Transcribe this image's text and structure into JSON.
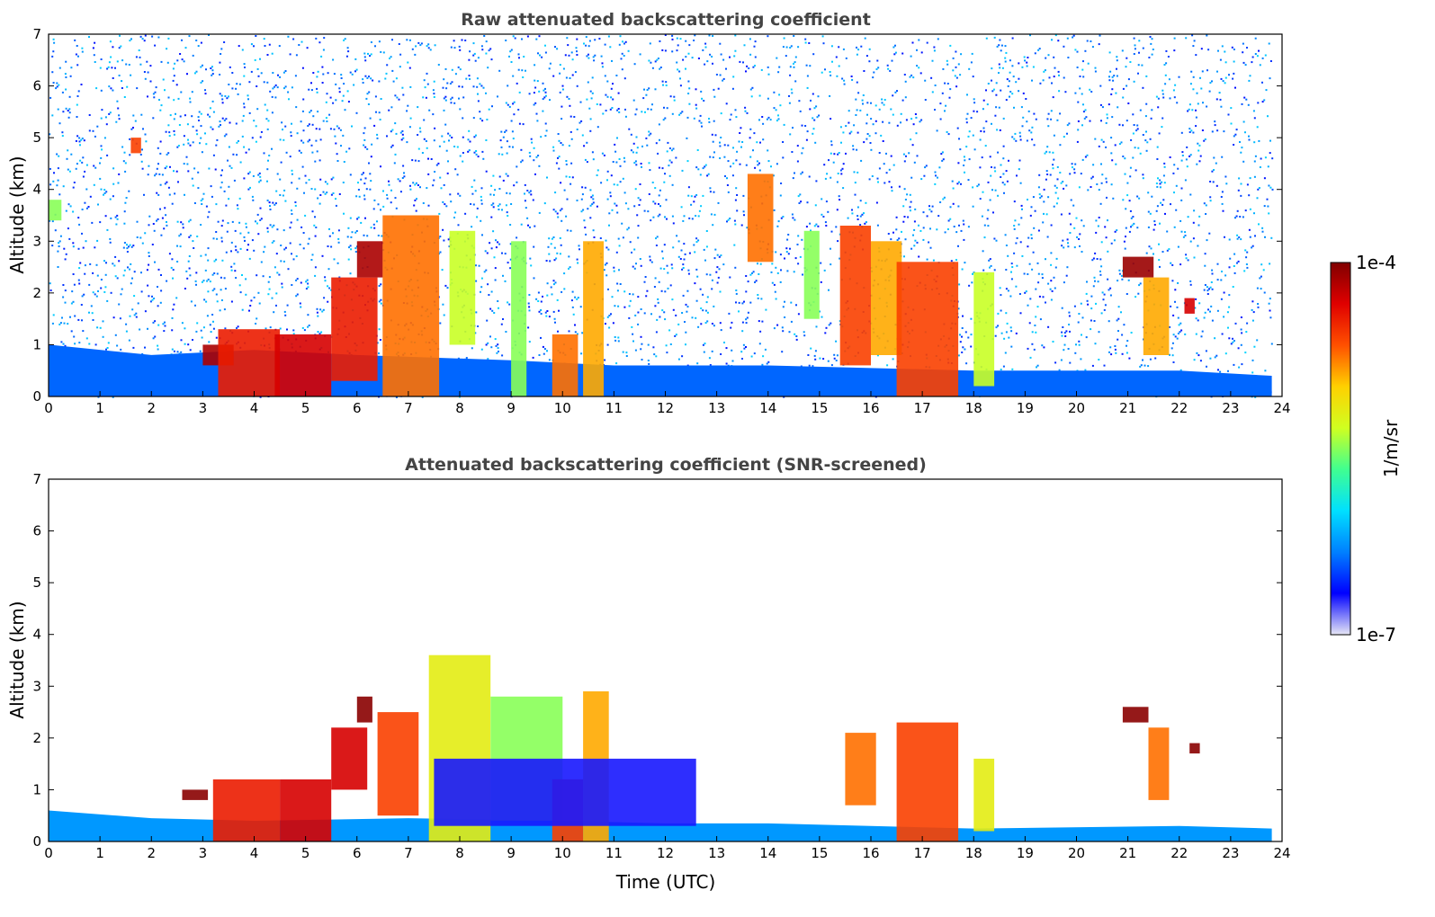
{
  "chart_data": [
    {
      "type": "heatmap",
      "title": "Raw attenuated backscattering coefficient",
      "xlabel": "",
      "ylabel": "Altitude (km)",
      "xlim": [
        0,
        24
      ],
      "ylim": [
        0,
        7
      ],
      "x_ticks": [
        "0",
        "1",
        "2",
        "3",
        "4",
        "5",
        "6",
        "7",
        "8",
        "9",
        "10",
        "11",
        "12",
        "13",
        "14",
        "15",
        "16",
        "17",
        "18",
        "19",
        "20",
        "21",
        "22",
        "23",
        "24"
      ],
      "y_ticks": [
        "0",
        "1",
        "2",
        "3",
        "4",
        "5",
        "6",
        "7"
      ],
      "boundary_layer": [
        {
          "x": 0,
          "y": 1.0
        },
        {
          "x": 2,
          "y": 0.8
        },
        {
          "x": 4,
          "y": 0.9
        },
        {
          "x": 6,
          "y": 0.8
        },
        {
          "x": 9,
          "y": 0.7
        },
        {
          "x": 11,
          "y": 0.6
        },
        {
          "x": 14,
          "y": 0.6
        },
        {
          "x": 18,
          "y": 0.5
        },
        {
          "x": 22,
          "y": 0.5
        },
        {
          "x": 23.8,
          "y": 0.4
        }
      ],
      "cloud_features": [
        {
          "x0": 3.0,
          "x1": 3.6,
          "y0": 0.6,
          "y1": 1.0,
          "level": 0.95
        },
        {
          "x0": 3.3,
          "x1": 4.5,
          "y0": 0.0,
          "y1": 1.3,
          "level": 0.85
        },
        {
          "x0": 4.4,
          "x1": 5.5,
          "y0": 0.0,
          "y1": 1.2,
          "level": 0.9
        },
        {
          "x0": 5.5,
          "x1": 6.4,
          "y0": 0.3,
          "y1": 2.3,
          "level": 0.85
        },
        {
          "x0": 6.0,
          "x1": 6.5,
          "y0": 2.3,
          "y1": 3.0,
          "level": 0.95
        },
        {
          "x0": 6.5,
          "x1": 7.6,
          "y0": 0.0,
          "y1": 3.5,
          "level": 0.75
        },
        {
          "x0": 7.8,
          "x1": 8.3,
          "y0": 1.0,
          "y1": 3.2,
          "level": 0.55
        },
        {
          "x0": 9.0,
          "x1": 9.3,
          "y0": 0.0,
          "y1": 3.0,
          "level": 0.5
        },
        {
          "x0": 9.8,
          "x1": 10.3,
          "y0": 0.0,
          "y1": 1.2,
          "level": 0.75
        },
        {
          "x0": 10.4,
          "x1": 10.8,
          "y0": 0.0,
          "y1": 3.0,
          "level": 0.7
        },
        {
          "x0": 13.6,
          "x1": 14.1,
          "y0": 2.6,
          "y1": 4.3,
          "level": 0.75
        },
        {
          "x0": 14.7,
          "x1": 15.0,
          "y0": 1.5,
          "y1": 3.2,
          "level": 0.5
        },
        {
          "x0": 15.4,
          "x1": 16.0,
          "y0": 0.6,
          "y1": 3.3,
          "level": 0.8
        },
        {
          "x0": 16.0,
          "x1": 16.6,
          "y0": 0.8,
          "y1": 3.0,
          "level": 0.7
        },
        {
          "x0": 16.5,
          "x1": 17.7,
          "y0": 0.0,
          "y1": 2.6,
          "level": 0.8
        },
        {
          "x0": 18.0,
          "x1": 18.4,
          "y0": 0.2,
          "y1": 2.4,
          "level": 0.55
        },
        {
          "x0": 20.9,
          "x1": 21.5,
          "y0": 2.3,
          "y1": 2.7,
          "level": 0.97
        },
        {
          "x0": 21.3,
          "x1": 21.8,
          "y0": 0.8,
          "y1": 2.3,
          "level": 0.7
        },
        {
          "x0": 22.1,
          "x1": 22.3,
          "y0": 1.6,
          "y1": 1.9,
          "level": 0.9
        },
        {
          "x0": 1.6,
          "x1": 1.8,
          "y0": 4.7,
          "y1": 5.0,
          "level": 0.8
        },
        {
          "x0": 0.0,
          "x1": 0.25,
          "y0": 3.4,
          "y1": 3.8,
          "level": 0.5
        }
      ]
    },
    {
      "type": "heatmap",
      "title": "Attenuated backscattering coefficient (SNR-screened)",
      "xlabel": "Time (UTC)",
      "ylabel": "Altitude (km)",
      "xlim": [
        0,
        24
      ],
      "ylim": [
        0,
        7
      ],
      "x_ticks": [
        "0",
        "1",
        "2",
        "3",
        "4",
        "5",
        "6",
        "7",
        "8",
        "9",
        "10",
        "11",
        "12",
        "13",
        "14",
        "15",
        "16",
        "17",
        "18",
        "19",
        "20",
        "21",
        "22",
        "23",
        "24"
      ],
      "y_ticks": [
        "0",
        "1",
        "2",
        "3",
        "4",
        "5",
        "6",
        "7"
      ],
      "boundary_layer": [
        {
          "x": 0,
          "y": 0.6
        },
        {
          "x": 2,
          "y": 0.45
        },
        {
          "x": 4,
          "y": 0.4
        },
        {
          "x": 7,
          "y": 0.45
        },
        {
          "x": 10,
          "y": 0.4
        },
        {
          "x": 12,
          "y": 0.35
        },
        {
          "x": 14,
          "y": 0.35
        },
        {
          "x": 18,
          "y": 0.25
        },
        {
          "x": 22,
          "y": 0.3
        },
        {
          "x": 23.8,
          "y": 0.25
        }
      ],
      "cloud_features": [
        {
          "x0": 2.6,
          "x1": 3.1,
          "y0": 0.8,
          "y1": 1.0,
          "level": 0.99
        },
        {
          "x0": 3.2,
          "x1": 4.5,
          "y0": 0.0,
          "y1": 1.2,
          "level": 0.85
        },
        {
          "x0": 4.5,
          "x1": 5.5,
          "y0": 0.0,
          "y1": 1.2,
          "level": 0.9
        },
        {
          "x0": 5.5,
          "x1": 6.2,
          "y0": 1.0,
          "y1": 2.2,
          "level": 0.9
        },
        {
          "x0": 6.0,
          "x1": 6.3,
          "y0": 2.3,
          "y1": 2.8,
          "level": 0.99
        },
        {
          "x0": 6.4,
          "x1": 7.2,
          "y0": 0.5,
          "y1": 2.5,
          "level": 0.8
        },
        {
          "x0": 7.4,
          "x1": 8.6,
          "y0": 0.0,
          "y1": 3.6,
          "level": 0.6
        },
        {
          "x0": 8.6,
          "x1": 10.0,
          "y0": 0.4,
          "y1": 2.8,
          "level": 0.5
        },
        {
          "x0": 9.8,
          "x1": 10.4,
          "y0": 0.0,
          "y1": 1.2,
          "level": 0.8
        },
        {
          "x0": 10.4,
          "x1": 10.9,
          "y0": 0.0,
          "y1": 2.9,
          "level": 0.7
        },
        {
          "x0": 7.5,
          "x1": 12.6,
          "y0": 0.3,
          "y1": 1.6,
          "level": 0.1
        },
        {
          "x0": 15.5,
          "x1": 16.1,
          "y0": 0.7,
          "y1": 2.1,
          "level": 0.75
        },
        {
          "x0": 16.5,
          "x1": 17.7,
          "y0": 0.0,
          "y1": 2.3,
          "level": 0.8
        },
        {
          "x0": 18.0,
          "x1": 18.4,
          "y0": 0.2,
          "y1": 1.6,
          "level": 0.6
        },
        {
          "x0": 20.9,
          "x1": 21.4,
          "y0": 2.3,
          "y1": 2.6,
          "level": 0.99
        },
        {
          "x0": 21.4,
          "x1": 21.8,
          "y0": 0.8,
          "y1": 2.2,
          "level": 0.75
        },
        {
          "x0": 22.2,
          "x1": 22.4,
          "y0": 1.7,
          "y1": 1.9,
          "level": 0.99
        }
      ]
    }
  ],
  "colorbar": {
    "label": "1/m/sr",
    "max_label": "1e-4",
    "min_label": "1e-7",
    "scale": "log",
    "colormap": "jet",
    "stops": [
      "#e6e6f5",
      "#0000ff",
      "#0080ff",
      "#00e0ff",
      "#40ff90",
      "#d0ff20",
      "#ffd000",
      "#ff5000",
      "#e00000",
      "#800000"
    ]
  }
}
